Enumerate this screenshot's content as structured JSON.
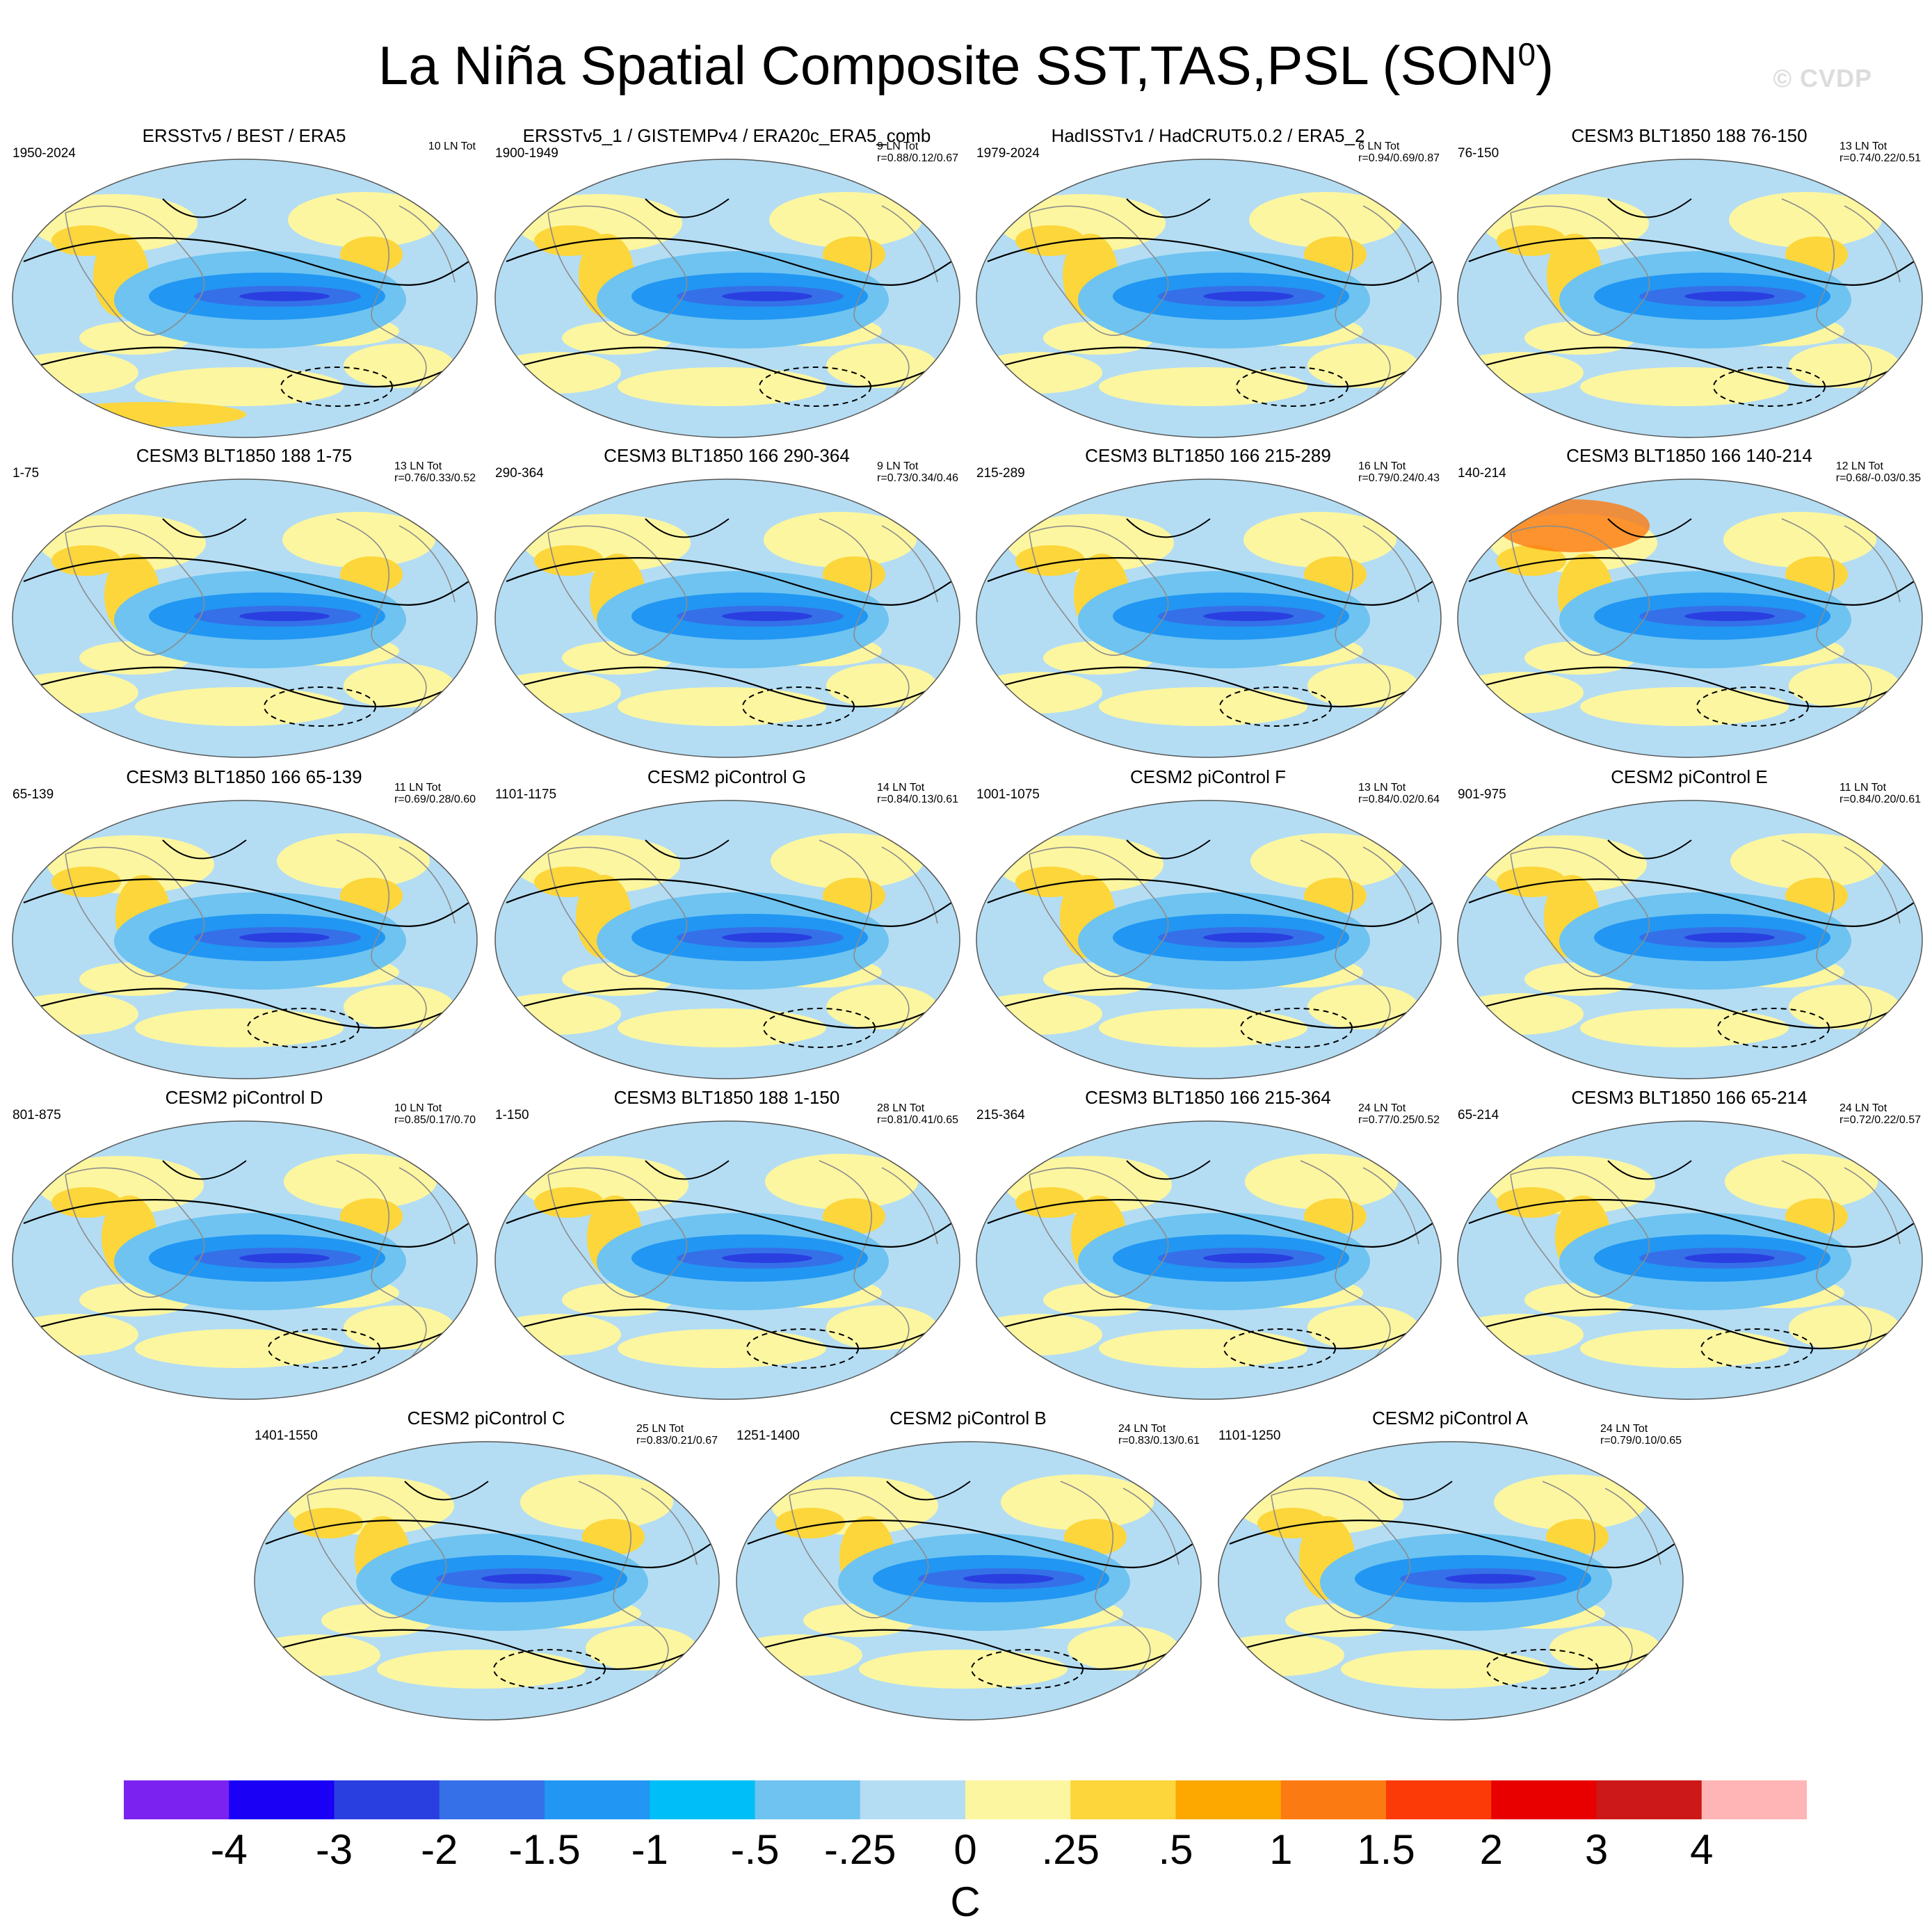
{
  "title": "La Niña Spatial Composite SST,TAS,PSL (SON",
  "title_sup": "0",
  "title_end": ")",
  "credit": "© CVDP",
  "panels": [
    {
      "title": "ERSSTv5 / BEST / ERA5",
      "years": "1950-2024",
      "lnt": "10 LN Tot",
      "r": ""
    },
    {
      "title": "ERSSTv5_1 / GISTEMPv4 / ERA20c_ERA5_comb",
      "years": "1900-1949",
      "lnt": "9 LN Tot",
      "r": "r=0.88/0.12/0.67"
    },
    {
      "title": "HadISSTv1 / HadCRUT5.0.2 / ERA5_2",
      "years": "1979-2024",
      "lnt": "6 LN Tot",
      "r": "r=0.94/0.69/0.87"
    },
    {
      "title": "CESM3 BLT1850 188 76-150",
      "years": "76-150",
      "lnt": "13 LN Tot",
      "r": "r=0.74/0.22/0.51"
    },
    {
      "title": "CESM3 BLT1850 188 1-75",
      "years": "1-75",
      "lnt": "13 LN Tot",
      "r": "r=0.76/0.33/0.52"
    },
    {
      "title": "CESM3 BLT1850 166 290-364",
      "years": "290-364",
      "lnt": "9 LN Tot",
      "r": "r=0.73/0.34/0.46"
    },
    {
      "title": "CESM3 BLT1850 166 215-289",
      "years": "215-289",
      "lnt": "16 LN Tot",
      "r": "r=0.79/0.24/0.43"
    },
    {
      "title": "CESM3 BLT1850 166 140-214",
      "years": "140-214",
      "lnt": "12 LN Tot",
      "r": "r=0.68/-0.03/0.35"
    },
    {
      "title": "CESM3 BLT1850 166 65-139",
      "years": "65-139",
      "lnt": "11 LN Tot",
      "r": "r=0.69/0.28/0.60"
    },
    {
      "title": "CESM2 piControl G",
      "years": "1101-1175",
      "lnt": "14 LN Tot",
      "r": "r=0.84/0.13/0.61"
    },
    {
      "title": "CESM2 piControl F",
      "years": "1001-1075",
      "lnt": "13 LN Tot",
      "r": "r=0.84/0.02/0.64"
    },
    {
      "title": "CESM2 piControl E",
      "years": "901-975",
      "lnt": "11 LN Tot",
      "r": "r=0.84/0.20/0.61"
    },
    {
      "title": "CESM2 piControl D",
      "years": "801-875",
      "lnt": "10 LN Tot",
      "r": "r=0.85/0.17/0.70"
    },
    {
      "title": "CESM3 BLT1850 188 1-150",
      "years": "1-150",
      "lnt": "28 LN Tot",
      "r": "r=0.81/0.41/0.65"
    },
    {
      "title": "CESM3 BLT1850 166 215-364",
      "years": "215-364",
      "lnt": "24 LN Tot",
      "r": "r=0.77/0.25/0.52"
    },
    {
      "title": "CESM3 BLT1850 166 65-214",
      "years": "65-214",
      "lnt": "24 LN Tot",
      "r": "r=0.72/0.22/0.57"
    },
    {
      "title": "CESM2 piControl C",
      "years": "1401-1550",
      "lnt": "25 LN Tot",
      "r": "r=0.83/0.21/0.67"
    },
    {
      "title": "CESM2 piControl B",
      "years": "1251-1400",
      "lnt": "24 LN Tot",
      "r": "r=0.83/0.13/0.61"
    },
    {
      "title": "CESM2 piControl A",
      "years": "1101-1250",
      "lnt": "24 LN Tot",
      "r": "r=0.79/0.10/0.65"
    }
  ],
  "colorbar": {
    "colors": [
      "#7b22f0",
      "#1a00f5",
      "#2a3fe0",
      "#3570e8",
      "#2196f3",
      "#00bff8",
      "#6ec3f0",
      "#b4ddf3",
      "#fdf6a0",
      "#fcd63a",
      "#fca800",
      "#fb7b12",
      "#fb3a08",
      "#e80000",
      "#cc1818",
      "#ffb5b5"
    ],
    "labels": [
      "-4",
      "-3",
      "-2",
      "-1.5",
      "-1",
      "-.5",
      "-.25",
      "0",
      ".25",
      ".5",
      "1",
      "1.5",
      "2",
      "3",
      "4"
    ],
    "unit": "C"
  }
}
